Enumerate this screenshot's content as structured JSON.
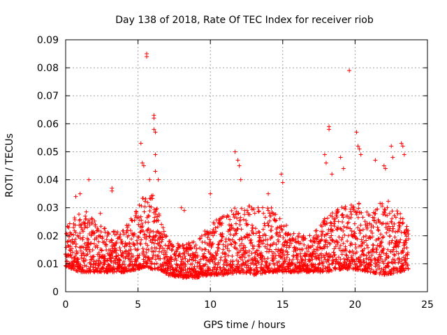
{
  "chart_data": {
    "type": "scatter",
    "title": "Day 138 of 2018, Rate Of TEC Index for receiver riob",
    "xlabel": "GPS time / hours",
    "ylabel": "ROTI / TECUs",
    "xlim": [
      0,
      25
    ],
    "ylim": [
      0,
      0.09
    ],
    "x_ticks": [
      0,
      5,
      10,
      15,
      20,
      25
    ],
    "x_tick_labels": [
      "0",
      "5",
      "10",
      "15",
      "20",
      "25"
    ],
    "y_ticks": [
      0,
      0.01,
      0.02,
      0.03,
      0.04,
      0.05,
      0.06,
      0.07,
      0.08,
      0.09
    ],
    "y_tick_labels": [
      "0",
      "0.01",
      "0.02",
      "0.03",
      "0.04",
      "0.05",
      "0.06",
      "0.07",
      "0.08",
      "0.09"
    ],
    "grid": true,
    "marker": "+",
    "color": "#ff0000",
    "series": [
      {
        "name": "ROTI",
        "profile_hours": [
          0,
          0.5,
          1,
          1.5,
          2,
          3,
          4,
          5,
          5.5,
          6,
          6.5,
          7,
          8,
          9,
          10,
          11,
          12,
          13,
          14,
          15,
          16,
          17,
          18,
          19,
          20,
          21,
          22,
          23,
          23.7
        ],
        "profile_low": [
          0.009,
          0.008,
          0.007,
          0.007,
          0.007,
          0.007,
          0.007,
          0.008,
          0.009,
          0.008,
          0.008,
          0.006,
          0.005,
          0.005,
          0.006,
          0.006,
          0.007,
          0.006,
          0.007,
          0.007,
          0.007,
          0.007,
          0.007,
          0.008,
          0.008,
          0.007,
          0.006,
          0.007,
          0.008
        ],
        "profile_high": [
          0.023,
          0.026,
          0.029,
          0.029,
          0.026,
          0.022,
          0.022,
          0.03,
          0.037,
          0.035,
          0.028,
          0.02,
          0.017,
          0.018,
          0.025,
          0.028,
          0.032,
          0.03,
          0.032,
          0.025,
          0.021,
          0.02,
          0.027,
          0.03,
          0.033,
          0.028,
          0.034,
          0.03,
          0.022
        ],
        "outliers": [
          [
            0.7,
            0.034
          ],
          [
            1.0,
            0.035
          ],
          [
            1.6,
            0.04
          ],
          [
            2.4,
            0.028
          ],
          [
            3.2,
            0.037
          ],
          [
            3.2,
            0.036
          ],
          [
            5.2,
            0.053
          ],
          [
            5.3,
            0.046
          ],
          [
            5.4,
            0.045
          ],
          [
            5.6,
            0.085
          ],
          [
            5.6,
            0.084
          ],
          [
            5.8,
            0.04
          ],
          [
            6.1,
            0.063
          ],
          [
            6.1,
            0.062
          ],
          [
            6.1,
            0.058
          ],
          [
            6.2,
            0.057
          ],
          [
            6.2,
            0.049
          ],
          [
            6.2,
            0.043
          ],
          [
            6.4,
            0.04
          ],
          [
            8.0,
            0.03
          ],
          [
            8.2,
            0.029
          ],
          [
            10.0,
            0.035
          ],
          [
            11.7,
            0.05
          ],
          [
            11.9,
            0.047
          ],
          [
            12.0,
            0.045
          ],
          [
            12.1,
            0.04
          ],
          [
            13.3,
            0.03
          ],
          [
            14.0,
            0.035
          ],
          [
            14.9,
            0.042
          ],
          [
            15.0,
            0.039
          ],
          [
            17.9,
            0.049
          ],
          [
            18.0,
            0.046
          ],
          [
            18.2,
            0.059
          ],
          [
            18.2,
            0.058
          ],
          [
            18.4,
            0.042
          ],
          [
            19.0,
            0.048
          ],
          [
            19.2,
            0.044
          ],
          [
            19.6,
            0.079
          ],
          [
            20.1,
            0.057
          ],
          [
            20.2,
            0.052
          ],
          [
            20.3,
            0.051
          ],
          [
            20.4,
            0.049
          ],
          [
            21.4,
            0.047
          ],
          [
            22.0,
            0.045
          ],
          [
            22.1,
            0.044
          ],
          [
            22.5,
            0.052
          ],
          [
            22.6,
            0.048
          ],
          [
            23.2,
            0.053
          ],
          [
            23.3,
            0.052
          ],
          [
            23.4,
            0.049
          ]
        ]
      }
    ]
  }
}
